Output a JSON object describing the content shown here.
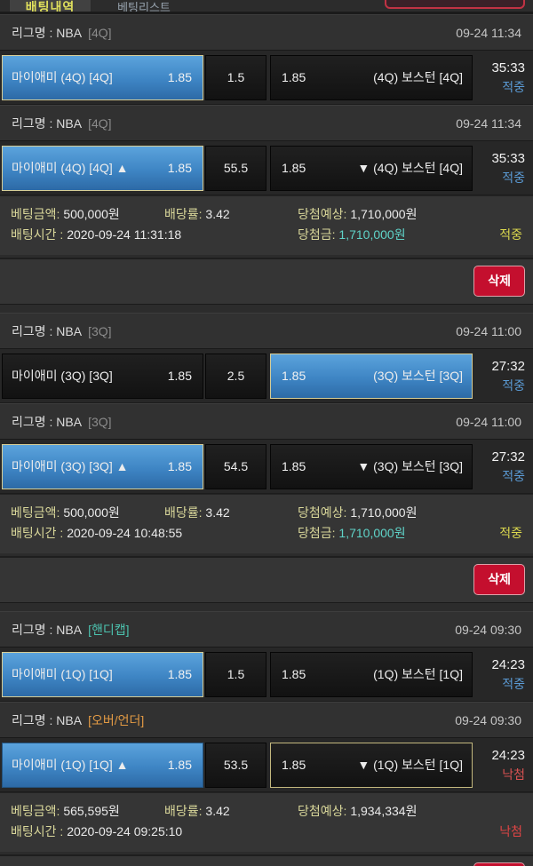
{
  "topbar": {
    "active_tab_label": "배팅내역",
    "secondary_tab_label": "베팅리스트"
  },
  "colors": {
    "selected_win_blue": "#3e85c4",
    "selection_border": "#d6cd96",
    "status_win_blue": "#5b9bd5",
    "status_lose_red": "#d95252",
    "result_win_yellow": "#dcd94e",
    "result_lose_red": "#e04545",
    "win_amount_cyan": "#5fd3c8",
    "delete_red": "#c40f2e",
    "handicap_teal": "#4cc2ae",
    "overunder_orange": "#e29a44"
  },
  "groups": [
    {
      "bets": [
        {
          "league_name": "리그명 : NBA",
          "league_tag": "[4Q]",
          "time": "09-24 11:34",
          "home": {
            "name": "마이애미 (4Q) [4Q]",
            "odds": "1.85"
          },
          "mid": "1.5",
          "away": {
            "odds": "1.85",
            "name": "(4Q) 보스턴 [4Q]"
          },
          "score": "35:33",
          "status": "적중"
        },
        {
          "league_name": "리그명 : NBA",
          "league_tag": "[4Q]",
          "time": "09-24 11:34",
          "home": {
            "name": "마이애미 (4Q) [4Q] ▲",
            "odds": "1.85"
          },
          "mid": "55.5",
          "away": {
            "odds": "1.85",
            "name": "▼ (4Q) 보스턴 [4Q]"
          },
          "score": "35:33",
          "status": "적중"
        }
      ],
      "info": {
        "bet_amount_label": "베팅금액:",
        "bet_amount": "500,000원",
        "rate_label": "배당률:",
        "rate": "3.42",
        "expect_label": "당첨예상:",
        "expect": "1,710,000원",
        "bet_time_label": "배팅시간 :",
        "bet_time": "2020-09-24 11:31:18",
        "win_label": "당첨금:",
        "win_amount": "1,710,000원",
        "result": "적중"
      },
      "delete_label": "삭제"
    },
    {
      "bets": [
        {
          "league_name": "리그명 : NBA",
          "league_tag": "[3Q]",
          "time": "09-24 11:00",
          "home": {
            "name": "마이애미 (3Q) [3Q]",
            "odds": "1.85"
          },
          "mid": "2.5",
          "away": {
            "odds": "1.85",
            "name": "(3Q) 보스턴 [3Q]"
          },
          "score": "27:32",
          "status": "적중"
        },
        {
          "league_name": "리그명 : NBA",
          "league_tag": "[3Q]",
          "time": "09-24 11:00",
          "home": {
            "name": "마이애미 (3Q) [3Q] ▲",
            "odds": "1.85"
          },
          "mid": "54.5",
          "away": {
            "odds": "1.85",
            "name": "▼ (3Q) 보스턴 [3Q]"
          },
          "score": "27:32",
          "status": "적중"
        }
      ],
      "info": {
        "bet_amount_label": "베팅금액:",
        "bet_amount": "500,000원",
        "rate_label": "배당률:",
        "rate": "3.42",
        "expect_label": "당첨예상:",
        "expect": "1,710,000원",
        "bet_time_label": "배팅시간 :",
        "bet_time": "2020-09-24 10:48:55",
        "win_label": "당첨금:",
        "win_amount": "1,710,000원",
        "result": "적중"
      },
      "delete_label": "삭제"
    },
    {
      "bets": [
        {
          "league_name": "리그명 : NBA",
          "league_tag": "[핸디캡]",
          "time": "09-24 09:30",
          "home": {
            "name": "마이애미 (1Q) [1Q]",
            "odds": "1.85"
          },
          "mid": "1.5",
          "away": {
            "odds": "1.85",
            "name": "(1Q) 보스턴 [1Q]"
          },
          "score": "24:23",
          "status": "적중"
        },
        {
          "league_name": "리그명 : NBA",
          "league_tag": "[오버/언더]",
          "time": "09-24 09:30",
          "home": {
            "name": "마이애미 (1Q) [1Q] ▲",
            "odds": "1.85"
          },
          "mid": "53.5",
          "away": {
            "odds": "1.85",
            "name": "▼ (1Q) 보스턴 [1Q]"
          },
          "score": "24:23",
          "status": "낙첨"
        }
      ],
      "info": {
        "bet_amount_label": "베팅금액:",
        "bet_amount": "565,595원",
        "rate_label": "배당률:",
        "rate": "3.42",
        "expect_label": "당첨예상:",
        "expect": "1,934,334원",
        "bet_time_label": "배팅시간 :",
        "bet_time": "2020-09-24 09:25:10",
        "result": "낙첨"
      },
      "delete_label": "삭제"
    }
  ]
}
